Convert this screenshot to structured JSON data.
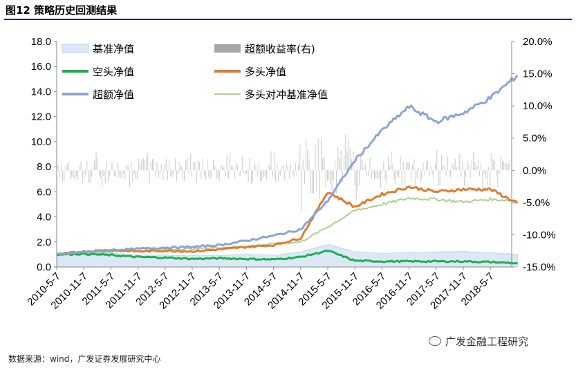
{
  "header": {
    "figure_title": "图12 策略历史回测结果"
  },
  "footer": {
    "source": "数据来源：wind，广发证券发展研究中心",
    "watermark": "广发金融工程研究"
  },
  "chart_data": {
    "type": "line",
    "x_tick_labels": [
      "2010-5-7",
      "2010-11-7",
      "2011-5-7",
      "2011-11-7",
      "2012-5-7",
      "2012-11-7",
      "2013-5-7",
      "2013-11-7",
      "2014-5-7",
      "2014-11-7",
      "2015-5-7",
      "2015-11-7",
      "2016-5-7",
      "2016-11-7",
      "2017-5-7",
      "2017-11-7",
      "2018-5-7"
    ],
    "y_left": {
      "range": [
        0,
        18
      ],
      "ticks": [
        "0.0",
        "2.0",
        "4.0",
        "6.0",
        "8.0",
        "10.0",
        "12.0",
        "14.0",
        "16.0",
        "18.0"
      ]
    },
    "y_right": {
      "range": [
        -15,
        20
      ],
      "ticks": [
        "-15.0%",
        "-10.0%",
        "-5.0%",
        "0.0%",
        "5.0%",
        "10.0%",
        "15.0%",
        "20.0%"
      ]
    },
    "legend": [
      {
        "name": "基准净值",
        "kind": "area",
        "color": "#dce8f5"
      },
      {
        "name": "超额收益率(右)",
        "kind": "bar",
        "color": "#a6a6a6"
      },
      {
        "name": "空头净值",
        "kind": "line",
        "color": "#19b34b"
      },
      {
        "name": "多头净值",
        "kind": "line",
        "color": "#e07b2f"
      },
      {
        "name": "超额净值",
        "kind": "line",
        "color": "#8aa4d6"
      },
      {
        "name": "多头对冲基准净值",
        "kind": "line",
        "color": "#a9d18e"
      }
    ],
    "series": [
      {
        "name": "基准净值",
        "axis": "left",
        "x": [
          "2010-5-7",
          "2010-11-7",
          "2011-5-7",
          "2011-11-7",
          "2012-5-7",
          "2012-11-7",
          "2013-5-7",
          "2013-11-7",
          "2014-5-7",
          "2014-11-7",
          "2015-5-7",
          "2015-11-7",
          "2016-5-7",
          "2016-11-7",
          "2017-5-7",
          "2017-11-7",
          "2018-5-7",
          "2018-11-7"
        ],
        "values": [
          1.0,
          1.15,
          1.1,
          0.95,
          0.95,
          0.9,
          0.95,
          1.0,
          0.95,
          1.2,
          1.8,
          1.2,
          1.1,
          1.15,
          1.2,
          1.25,
          1.15,
          1.0
        ]
      },
      {
        "name": "空头净值",
        "axis": "left",
        "x": [
          "2010-5-7",
          "2010-11-7",
          "2011-5-7",
          "2011-11-7",
          "2012-5-7",
          "2012-11-7",
          "2013-5-7",
          "2013-11-7",
          "2014-5-7",
          "2014-11-7",
          "2015-5-7",
          "2015-11-7",
          "2016-5-7",
          "2016-11-7",
          "2017-5-7",
          "2017-11-7",
          "2018-5-7",
          "2018-11-7"
        ],
        "values": [
          1.0,
          1.05,
          0.95,
          0.8,
          0.75,
          0.65,
          0.7,
          0.65,
          0.6,
          0.8,
          1.3,
          0.5,
          0.45,
          0.45,
          0.45,
          0.45,
          0.4,
          0.3
        ]
      },
      {
        "name": "多头净值",
        "axis": "left",
        "x": [
          "2010-5-7",
          "2010-11-7",
          "2011-5-7",
          "2011-11-7",
          "2012-5-7",
          "2012-11-7",
          "2013-5-7",
          "2013-11-7",
          "2014-5-7",
          "2014-11-7",
          "2015-5-7",
          "2015-11-7",
          "2016-5-7",
          "2016-11-7",
          "2017-5-7",
          "2017-11-7",
          "2018-5-7",
          "2018-11-7"
        ],
        "values": [
          1.0,
          1.25,
          1.35,
          1.25,
          1.3,
          1.25,
          1.4,
          1.6,
          1.75,
          2.3,
          6.0,
          4.8,
          5.8,
          6.4,
          6.0,
          6.2,
          6.2,
          5.1
        ]
      },
      {
        "name": "超额净值",
        "axis": "left",
        "x": [
          "2010-5-7",
          "2010-11-7",
          "2011-5-7",
          "2011-11-7",
          "2012-5-7",
          "2012-11-7",
          "2013-5-7",
          "2013-11-7",
          "2014-5-7",
          "2014-11-7",
          "2015-5-7",
          "2015-11-7",
          "2016-5-7",
          "2016-11-7",
          "2017-5-7",
          "2017-11-7",
          "2018-5-7",
          "2018-11-7"
        ],
        "values": [
          1.0,
          1.2,
          1.35,
          1.45,
          1.55,
          1.6,
          1.75,
          2.1,
          2.5,
          3.0,
          5.3,
          8.5,
          10.9,
          12.8,
          11.6,
          12.3,
          13.5,
          15.3
        ]
      },
      {
        "name": "多头对冲基准净值",
        "axis": "left",
        "x": [
          "2010-5-7",
          "2010-11-7",
          "2011-5-7",
          "2011-11-7",
          "2012-5-7",
          "2012-11-7",
          "2013-5-7",
          "2013-11-7",
          "2014-5-7",
          "2014-11-7",
          "2015-5-7",
          "2015-11-7",
          "2016-5-7",
          "2016-11-7",
          "2017-5-7",
          "2017-11-7",
          "2018-5-7",
          "2018-11-7"
        ],
        "values": [
          1.0,
          1.1,
          1.25,
          1.3,
          1.4,
          1.45,
          1.55,
          1.65,
          1.85,
          2.0,
          3.2,
          4.5,
          5.0,
          5.5,
          5.4,
          5.2,
          5.4,
          5.3
        ]
      }
    ]
  }
}
